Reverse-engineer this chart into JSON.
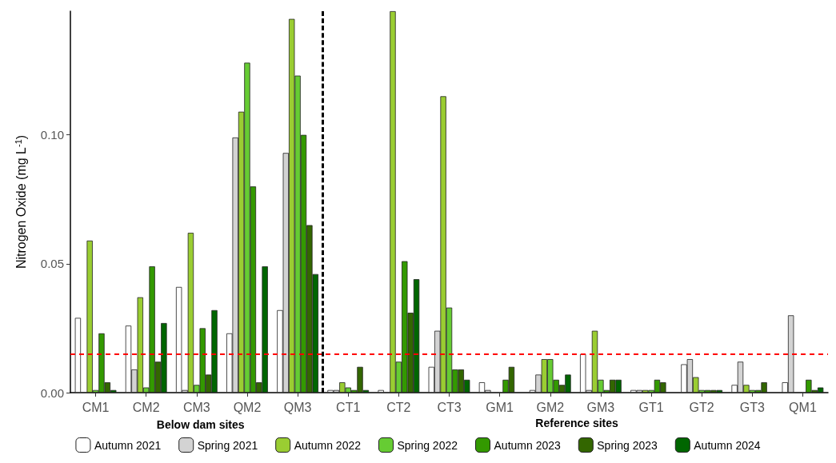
{
  "chart_data": {
    "type": "bar",
    "ylabel": "Nitrogen Oxide (mg L$^{-1}$)",
    "categories": [
      "CM1",
      "CM2",
      "CM3",
      "QM2",
      "QM3",
      "CT1",
      "CT2",
      "CT3",
      "GM1",
      "GM2",
      "GM3",
      "GT1",
      "GT2",
      "GT3",
      "QM1"
    ],
    "series": [
      {
        "name": "Autumn 2021",
        "color": "#ffffff",
        "values": [
          0.029,
          0.026,
          0.041,
          0.023,
          0.032,
          0.001,
          0.001,
          0.01,
          0.004,
          0.001,
          0.015,
          0.001,
          0.011,
          0.003,
          0.004
        ]
      },
      {
        "name": "Spring 2021",
        "color": "#d3d3d3",
        "values": [
          null,
          0.009,
          0.001,
          0.099,
          0.093,
          0.001,
          null,
          0.024,
          0.001,
          0.007,
          0.001,
          0.001,
          0.013,
          0.012,
          0.03
        ]
      },
      {
        "name": "Autumn 2022",
        "color": "#9acd32",
        "values": [
          0.059,
          0.037,
          0.062,
          0.109,
          0.145,
          0.004,
          0.148,
          0.115,
          null,
          0.013,
          0.024,
          0.001,
          0.006,
          0.003,
          null
        ]
      },
      {
        "name": "Spring 2022",
        "color": "#66cc33",
        "values": [
          0.001,
          0.002,
          0.003,
          0.128,
          0.123,
          0.002,
          0.012,
          0.033,
          null,
          0.013,
          0.005,
          0.001,
          0.001,
          0.001,
          null
        ]
      },
      {
        "name": "Autumn 2023",
        "color": "#339900",
        "values": [
          0.023,
          0.049,
          0.025,
          0.08,
          0.1,
          0.001,
          0.051,
          0.009,
          0.005,
          0.005,
          0.001,
          0.005,
          0.001,
          0.001,
          0.005
        ]
      },
      {
        "name": "Spring 2023",
        "color": "#336600",
        "values": [
          0.004,
          0.012,
          0.007,
          0.004,
          0.065,
          0.01,
          0.031,
          0.009,
          0.01,
          0.003,
          0.005,
          0.004,
          0.001,
          0.004,
          0.001
        ]
      },
      {
        "name": "Autumn 2024",
        "color": "#006600",
        "values": [
          0.001,
          0.027,
          0.032,
          0.049,
          0.046,
          0.001,
          0.044,
          0.005,
          null,
          0.007,
          0.005,
          null,
          0.001,
          null,
          0.002
        ]
      }
    ],
    "ylim": [
      0,
      0.148
    ],
    "yticks": [
      {
        "value": 0,
        "label": "0.00"
      },
      {
        "value": 0.05,
        "label": "0.05"
      },
      {
        "value": 0.1,
        "label": "0.10"
      }
    ],
    "ref_lines": [
      {
        "axis": "y",
        "value": 0.015,
        "color": "#ff0000",
        "line_style": "dashed"
      }
    ],
    "annotations": [
      "Below dam sites",
      "Reference sites"
    ],
    "grid": false,
    "legend": "bottom"
  }
}
